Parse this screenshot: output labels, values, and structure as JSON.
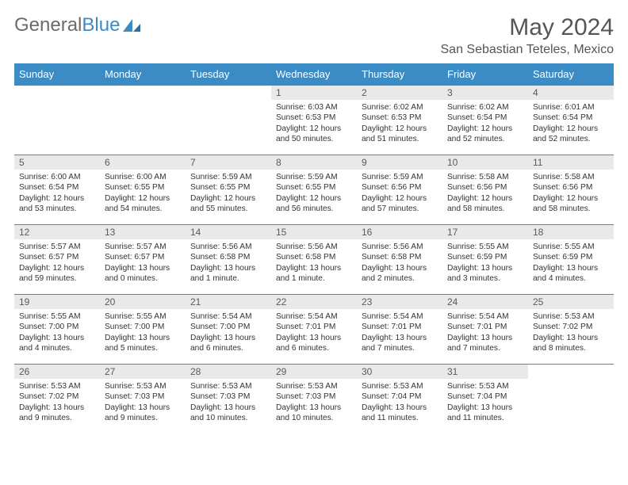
{
  "logo": {
    "text_gray": "General",
    "text_blue": "Blue"
  },
  "header": {
    "month_title": "May 2024",
    "location": "San Sebastian Teteles, Mexico"
  },
  "colors": {
    "accent": "#3b8bc4",
    "daynum_bg": "#e9e9e9",
    "text_gray": "#6b6b6b",
    "header_text": "#555555"
  },
  "weekdays": [
    "Sunday",
    "Monday",
    "Tuesday",
    "Wednesday",
    "Thursday",
    "Friday",
    "Saturday"
  ],
  "weeks": [
    [
      null,
      null,
      null,
      {
        "n": "1",
        "sr": "6:03 AM",
        "ss": "6:53 PM",
        "dh": "12",
        "dm": "50 minutes"
      },
      {
        "n": "2",
        "sr": "6:02 AM",
        "ss": "6:53 PM",
        "dh": "12",
        "dm": "51 minutes"
      },
      {
        "n": "3",
        "sr": "6:02 AM",
        "ss": "6:54 PM",
        "dh": "12",
        "dm": "52 minutes"
      },
      {
        "n": "4",
        "sr": "6:01 AM",
        "ss": "6:54 PM",
        "dh": "12",
        "dm": "52 minutes"
      }
    ],
    [
      {
        "n": "5",
        "sr": "6:00 AM",
        "ss": "6:54 PM",
        "dh": "12",
        "dm": "53 minutes"
      },
      {
        "n": "6",
        "sr": "6:00 AM",
        "ss": "6:55 PM",
        "dh": "12",
        "dm": "54 minutes"
      },
      {
        "n": "7",
        "sr": "5:59 AM",
        "ss": "6:55 PM",
        "dh": "12",
        "dm": "55 minutes"
      },
      {
        "n": "8",
        "sr": "5:59 AM",
        "ss": "6:55 PM",
        "dh": "12",
        "dm": "56 minutes"
      },
      {
        "n": "9",
        "sr": "5:59 AM",
        "ss": "6:56 PM",
        "dh": "12",
        "dm": "57 minutes"
      },
      {
        "n": "10",
        "sr": "5:58 AM",
        "ss": "6:56 PM",
        "dh": "12",
        "dm": "58 minutes"
      },
      {
        "n": "11",
        "sr": "5:58 AM",
        "ss": "6:56 PM",
        "dh": "12",
        "dm": "58 minutes"
      }
    ],
    [
      {
        "n": "12",
        "sr": "5:57 AM",
        "ss": "6:57 PM",
        "dh": "12",
        "dm": "59 minutes"
      },
      {
        "n": "13",
        "sr": "5:57 AM",
        "ss": "6:57 PM",
        "dh": "13",
        "dm": "0 minutes"
      },
      {
        "n": "14",
        "sr": "5:56 AM",
        "ss": "6:58 PM",
        "dh": "13",
        "dm": "1 minute"
      },
      {
        "n": "15",
        "sr": "5:56 AM",
        "ss": "6:58 PM",
        "dh": "13",
        "dm": "1 minute"
      },
      {
        "n": "16",
        "sr": "5:56 AM",
        "ss": "6:58 PM",
        "dh": "13",
        "dm": "2 minutes"
      },
      {
        "n": "17",
        "sr": "5:55 AM",
        "ss": "6:59 PM",
        "dh": "13",
        "dm": "3 minutes"
      },
      {
        "n": "18",
        "sr": "5:55 AM",
        "ss": "6:59 PM",
        "dh": "13",
        "dm": "4 minutes"
      }
    ],
    [
      {
        "n": "19",
        "sr": "5:55 AM",
        "ss": "7:00 PM",
        "dh": "13",
        "dm": "4 minutes"
      },
      {
        "n": "20",
        "sr": "5:55 AM",
        "ss": "7:00 PM",
        "dh": "13",
        "dm": "5 minutes"
      },
      {
        "n": "21",
        "sr": "5:54 AM",
        "ss": "7:00 PM",
        "dh": "13",
        "dm": "6 minutes"
      },
      {
        "n": "22",
        "sr": "5:54 AM",
        "ss": "7:01 PM",
        "dh": "13",
        "dm": "6 minutes"
      },
      {
        "n": "23",
        "sr": "5:54 AM",
        "ss": "7:01 PM",
        "dh": "13",
        "dm": "7 minutes"
      },
      {
        "n": "24",
        "sr": "5:54 AM",
        "ss": "7:01 PM",
        "dh": "13",
        "dm": "7 minutes"
      },
      {
        "n": "25",
        "sr": "5:53 AM",
        "ss": "7:02 PM",
        "dh": "13",
        "dm": "8 minutes"
      }
    ],
    [
      {
        "n": "26",
        "sr": "5:53 AM",
        "ss": "7:02 PM",
        "dh": "13",
        "dm": "9 minutes"
      },
      {
        "n": "27",
        "sr": "5:53 AM",
        "ss": "7:03 PM",
        "dh": "13",
        "dm": "9 minutes"
      },
      {
        "n": "28",
        "sr": "5:53 AM",
        "ss": "7:03 PM",
        "dh": "13",
        "dm": "10 minutes"
      },
      {
        "n": "29",
        "sr": "5:53 AM",
        "ss": "7:03 PM",
        "dh": "13",
        "dm": "10 minutes"
      },
      {
        "n": "30",
        "sr": "5:53 AM",
        "ss": "7:04 PM",
        "dh": "13",
        "dm": "11 minutes"
      },
      {
        "n": "31",
        "sr": "5:53 AM",
        "ss": "7:04 PM",
        "dh": "13",
        "dm": "11 minutes"
      },
      null
    ]
  ]
}
